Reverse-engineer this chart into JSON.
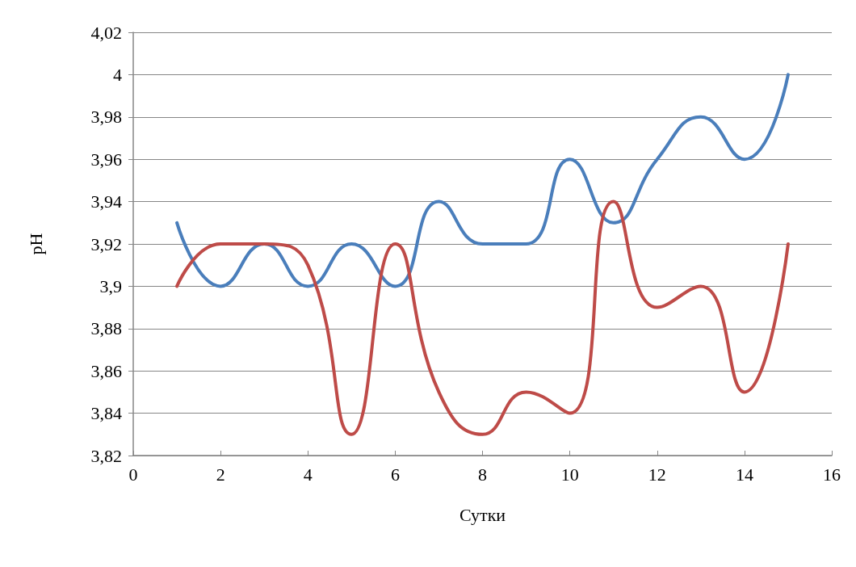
{
  "chart_data": {
    "type": "line",
    "xlabel": "Сутки",
    "ylabel": "pH",
    "x": [
      1,
      2,
      3,
      4,
      5,
      6,
      7,
      8,
      9,
      10,
      11,
      12,
      13,
      14,
      15
    ],
    "series": [
      {
        "color": "#4a7ebb",
        "values": [
          3.93,
          3.9,
          3.92,
          3.9,
          3.92,
          3.9,
          3.94,
          3.92,
          3.92,
          3.96,
          3.93,
          3.96,
          3.98,
          3.96,
          4.0
        ]
      },
      {
        "color": "#be4b48",
        "values": [
          3.9,
          3.92,
          3.92,
          3.91,
          3.83,
          3.92,
          3.85,
          3.83,
          3.85,
          3.84,
          3.94,
          3.89,
          3.9,
          3.85,
          3.92
        ]
      }
    ],
    "xlim": [
      0,
      16
    ],
    "xticks": [
      0,
      2,
      4,
      6,
      8,
      10,
      12,
      14,
      16
    ],
    "ylim": [
      3.82,
      4.02
    ],
    "yticks": [
      {
        "value": 3.82,
        "label": "3,82"
      },
      {
        "value": 3.84,
        "label": "3,84"
      },
      {
        "value": 3.86,
        "label": "3,86"
      },
      {
        "value": 3.88,
        "label": "3,88"
      },
      {
        "value": 3.9,
        "label": "3,9"
      },
      {
        "value": 3.92,
        "label": "3,92"
      },
      {
        "value": 3.94,
        "label": "3,94"
      },
      {
        "value": 3.96,
        "label": "3,96"
      },
      {
        "value": 3.98,
        "label": "3,98"
      },
      {
        "value": 4,
        "label": "4"
      },
      {
        "value": 4.02,
        "label": "4,02"
      }
    ],
    "grid": "y",
    "marker": "none",
    "line_style": "solid"
  }
}
